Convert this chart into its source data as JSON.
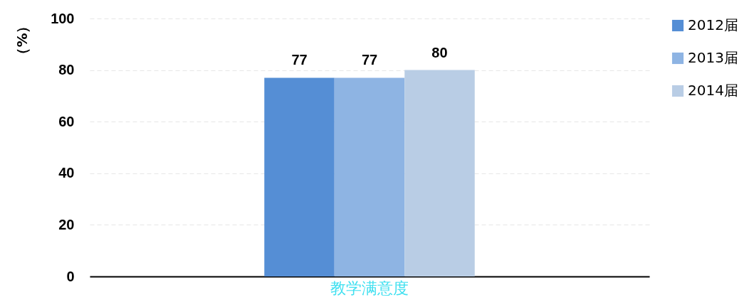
{
  "chart_data": {
    "type": "bar",
    "ylabel": "（%）",
    "categories": [
      "教学满意度"
    ],
    "series": [
      {
        "name": "2012届",
        "color": "#558ed5",
        "values": [
          77
        ]
      },
      {
        "name": "2013届",
        "color": "#8eb4e3",
        "values": [
          77
        ]
      },
      {
        "name": "2014届",
        "color": "#b9cde5",
        "values": [
          80
        ]
      }
    ],
    "ylim": [
      0,
      100
    ],
    "yticks": [
      0,
      20,
      40,
      60,
      80,
      100
    ],
    "grid": "y",
    "legend": "right",
    "data_labels": true
  }
}
